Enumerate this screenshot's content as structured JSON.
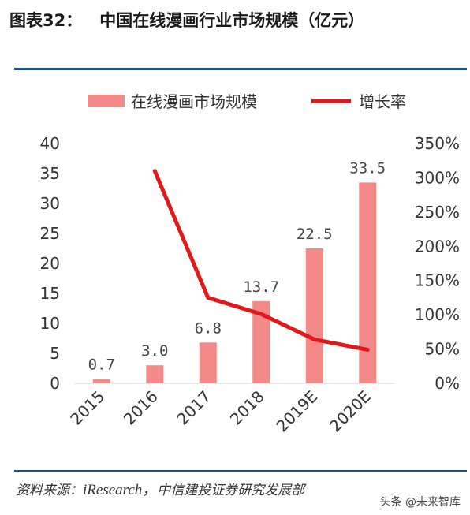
{
  "figure": {
    "number": "图表32：",
    "title": "中国在线漫画行业市场规模（亿元）"
  },
  "source_text": "资料来源：",
  "source_latin": "iResearch，",
  "source_org": "中信建投证券研究发展部",
  "watermark": "头条 @未来智库",
  "colors": {
    "bar": "#f38a88",
    "line": "#e0191c",
    "rule": "#1f4e79"
  },
  "chart_data": {
    "type": "bar",
    "categories": [
      "2015",
      "2016",
      "2017",
      "2018",
      "2019E",
      "2020E"
    ],
    "series": [
      {
        "name": "在线漫画市场规模",
        "type": "bar",
        "axis": "left",
        "values": [
          0.7,
          3.0,
          6.8,
          13.7,
          22.5,
          33.5
        ],
        "labels": [
          "0.7",
          "3.0",
          "6.8",
          "13.7",
          "22.5",
          "33.5"
        ]
      },
      {
        "name": "增长率",
        "type": "line",
        "axis": "right",
        "values": [
          null,
          3.1,
          1.25,
          1.01,
          0.64,
          0.49
        ]
      }
    ],
    "y_left": {
      "min": 0,
      "max": 40,
      "ticks": [
        0,
        5,
        10,
        15,
        20,
        25,
        30,
        35,
        40
      ],
      "tick_labels": [
        "0",
        "5",
        "10",
        "15",
        "20",
        "25",
        "30",
        "35",
        "40"
      ]
    },
    "y_right": {
      "min": 0,
      "max": 3.5,
      "ticks": [
        0,
        0.5,
        1,
        1.5,
        2,
        2.5,
        3,
        3.5
      ],
      "tick_labels": [
        "0%",
        "50%",
        "100%",
        "150%",
        "200%",
        "250%",
        "300%",
        "350%"
      ]
    },
    "legend_position": "top",
    "grid": false
  }
}
